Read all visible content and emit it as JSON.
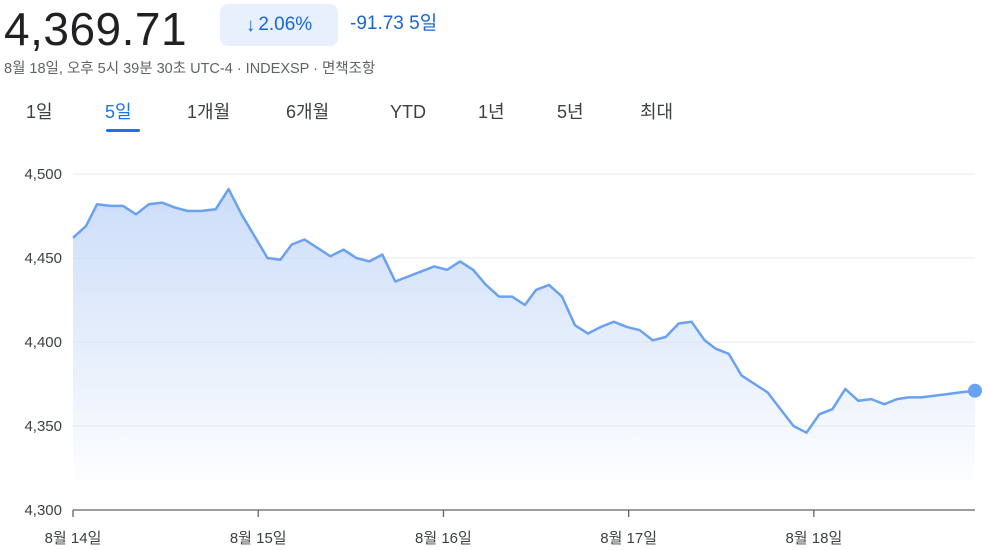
{
  "header": {
    "price": "4,369.71",
    "change_percent": "2.06%",
    "direction": "down",
    "change_abs": "-91.73",
    "period": "5일",
    "meta": "8월 18일, 오후 5시 39분 30초 UTC-4 · INDEXSP · 면책조항"
  },
  "tabs": [
    {
      "label": "1일",
      "active": false
    },
    {
      "label": "5일",
      "active": true
    },
    {
      "label": "1개월",
      "active": false
    },
    {
      "label": "6개월",
      "active": false
    },
    {
      "label": "YTD",
      "active": false
    },
    {
      "label": "1년",
      "active": false
    },
    {
      "label": "5년",
      "active": false
    },
    {
      "label": "최대",
      "active": false
    }
  ],
  "colors": {
    "accent": "#1a73e8",
    "line": "#6aa1f0",
    "fill_top": "#c9dbf8",
    "grid": "#e8eaed",
    "badge_bg": "#e8f0fe"
  },
  "chart_data": {
    "type": "area",
    "ylim": [
      4300,
      4500
    ],
    "yticks": [
      "4,500",
      "4,450",
      "4,400",
      "4,350",
      "4,300"
    ],
    "ytick_values": [
      4500,
      4450,
      4400,
      4350,
      4300
    ],
    "xticks": [
      "8월 14일",
      "8월 15일",
      "8월 16일",
      "8월 17일",
      "8월 18일"
    ],
    "x_range": [
      0,
      4.87
    ],
    "series": [
      {
        "x": [
          0.0,
          0.07,
          0.13,
          0.2,
          0.27,
          0.34,
          0.41,
          0.48,
          0.55,
          0.62,
          0.69,
          0.77,
          0.84,
          0.91,
          0.98,
          1.05,
          1.12,
          1.18,
          1.25,
          1.32,
          1.39,
          1.46,
          1.53,
          1.6,
          1.67,
          1.74,
          1.81,
          1.88,
          1.95,
          2.02,
          2.09,
          2.16,
          2.23,
          2.3,
          2.37,
          2.44,
          2.5,
          2.57,
          2.64,
          2.71,
          2.78,
          2.85,
          2.92,
          2.99,
          3.06,
          3.13,
          3.2,
          3.27,
          3.34,
          3.41,
          3.47,
          3.54,
          3.61,
          3.68,
          3.75,
          3.82,
          3.89,
          3.96,
          4.03,
          4.1,
          4.17,
          4.24,
          4.31,
          4.38,
          4.45,
          4.51,
          4.58,
          4.65,
          4.72,
          4.79,
          4.87
        ],
        "values": [
          4462,
          4469,
          4482,
          4481,
          4481,
          4476,
          4482,
          4483,
          4480,
          4478,
          4478,
          4479,
          4491,
          4476,
          4463,
          4450,
          4449,
          4458,
          4461,
          4456,
          4451,
          4455,
          4450,
          4448,
          4452,
          4436,
          4439,
          4442,
          4445,
          4443,
          4448,
          4443,
          4434,
          4427,
          4427,
          4422,
          4431,
          4434,
          4427,
          4410,
          4405,
          4409,
          4412,
          4409,
          4407,
          4401,
          4403,
          4411,
          4412,
          4401,
          4396,
          4393,
          4380,
          4375,
          4370,
          4360,
          4350,
          4346,
          4357,
          4360,
          4372,
          4365,
          4366,
          4363,
          4366,
          4367,
          4367,
          4368,
          4369,
          4370,
          4371
        ]
      }
    ]
  }
}
